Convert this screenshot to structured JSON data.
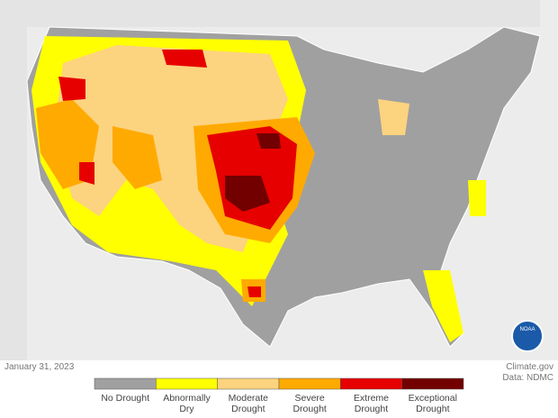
{
  "date": "January 31, 2023",
  "source": "Climate.gov",
  "data_credit": "Data: NDMC",
  "logo_text": "NOAA",
  "legend": [
    {
      "label": "No Drought",
      "color": "#a0a0a0"
    },
    {
      "label": "Abnormally Dry",
      "color": "#ffff00"
    },
    {
      "label": "Moderate Drought",
      "color": "#fcd37f"
    },
    {
      "label": "Severe Drought",
      "color": "#ffaa00"
    },
    {
      "label": "Extreme Drought",
      "color": "#e60000"
    },
    {
      "label": "Exceptional Drought",
      "color": "#730000"
    }
  ]
}
